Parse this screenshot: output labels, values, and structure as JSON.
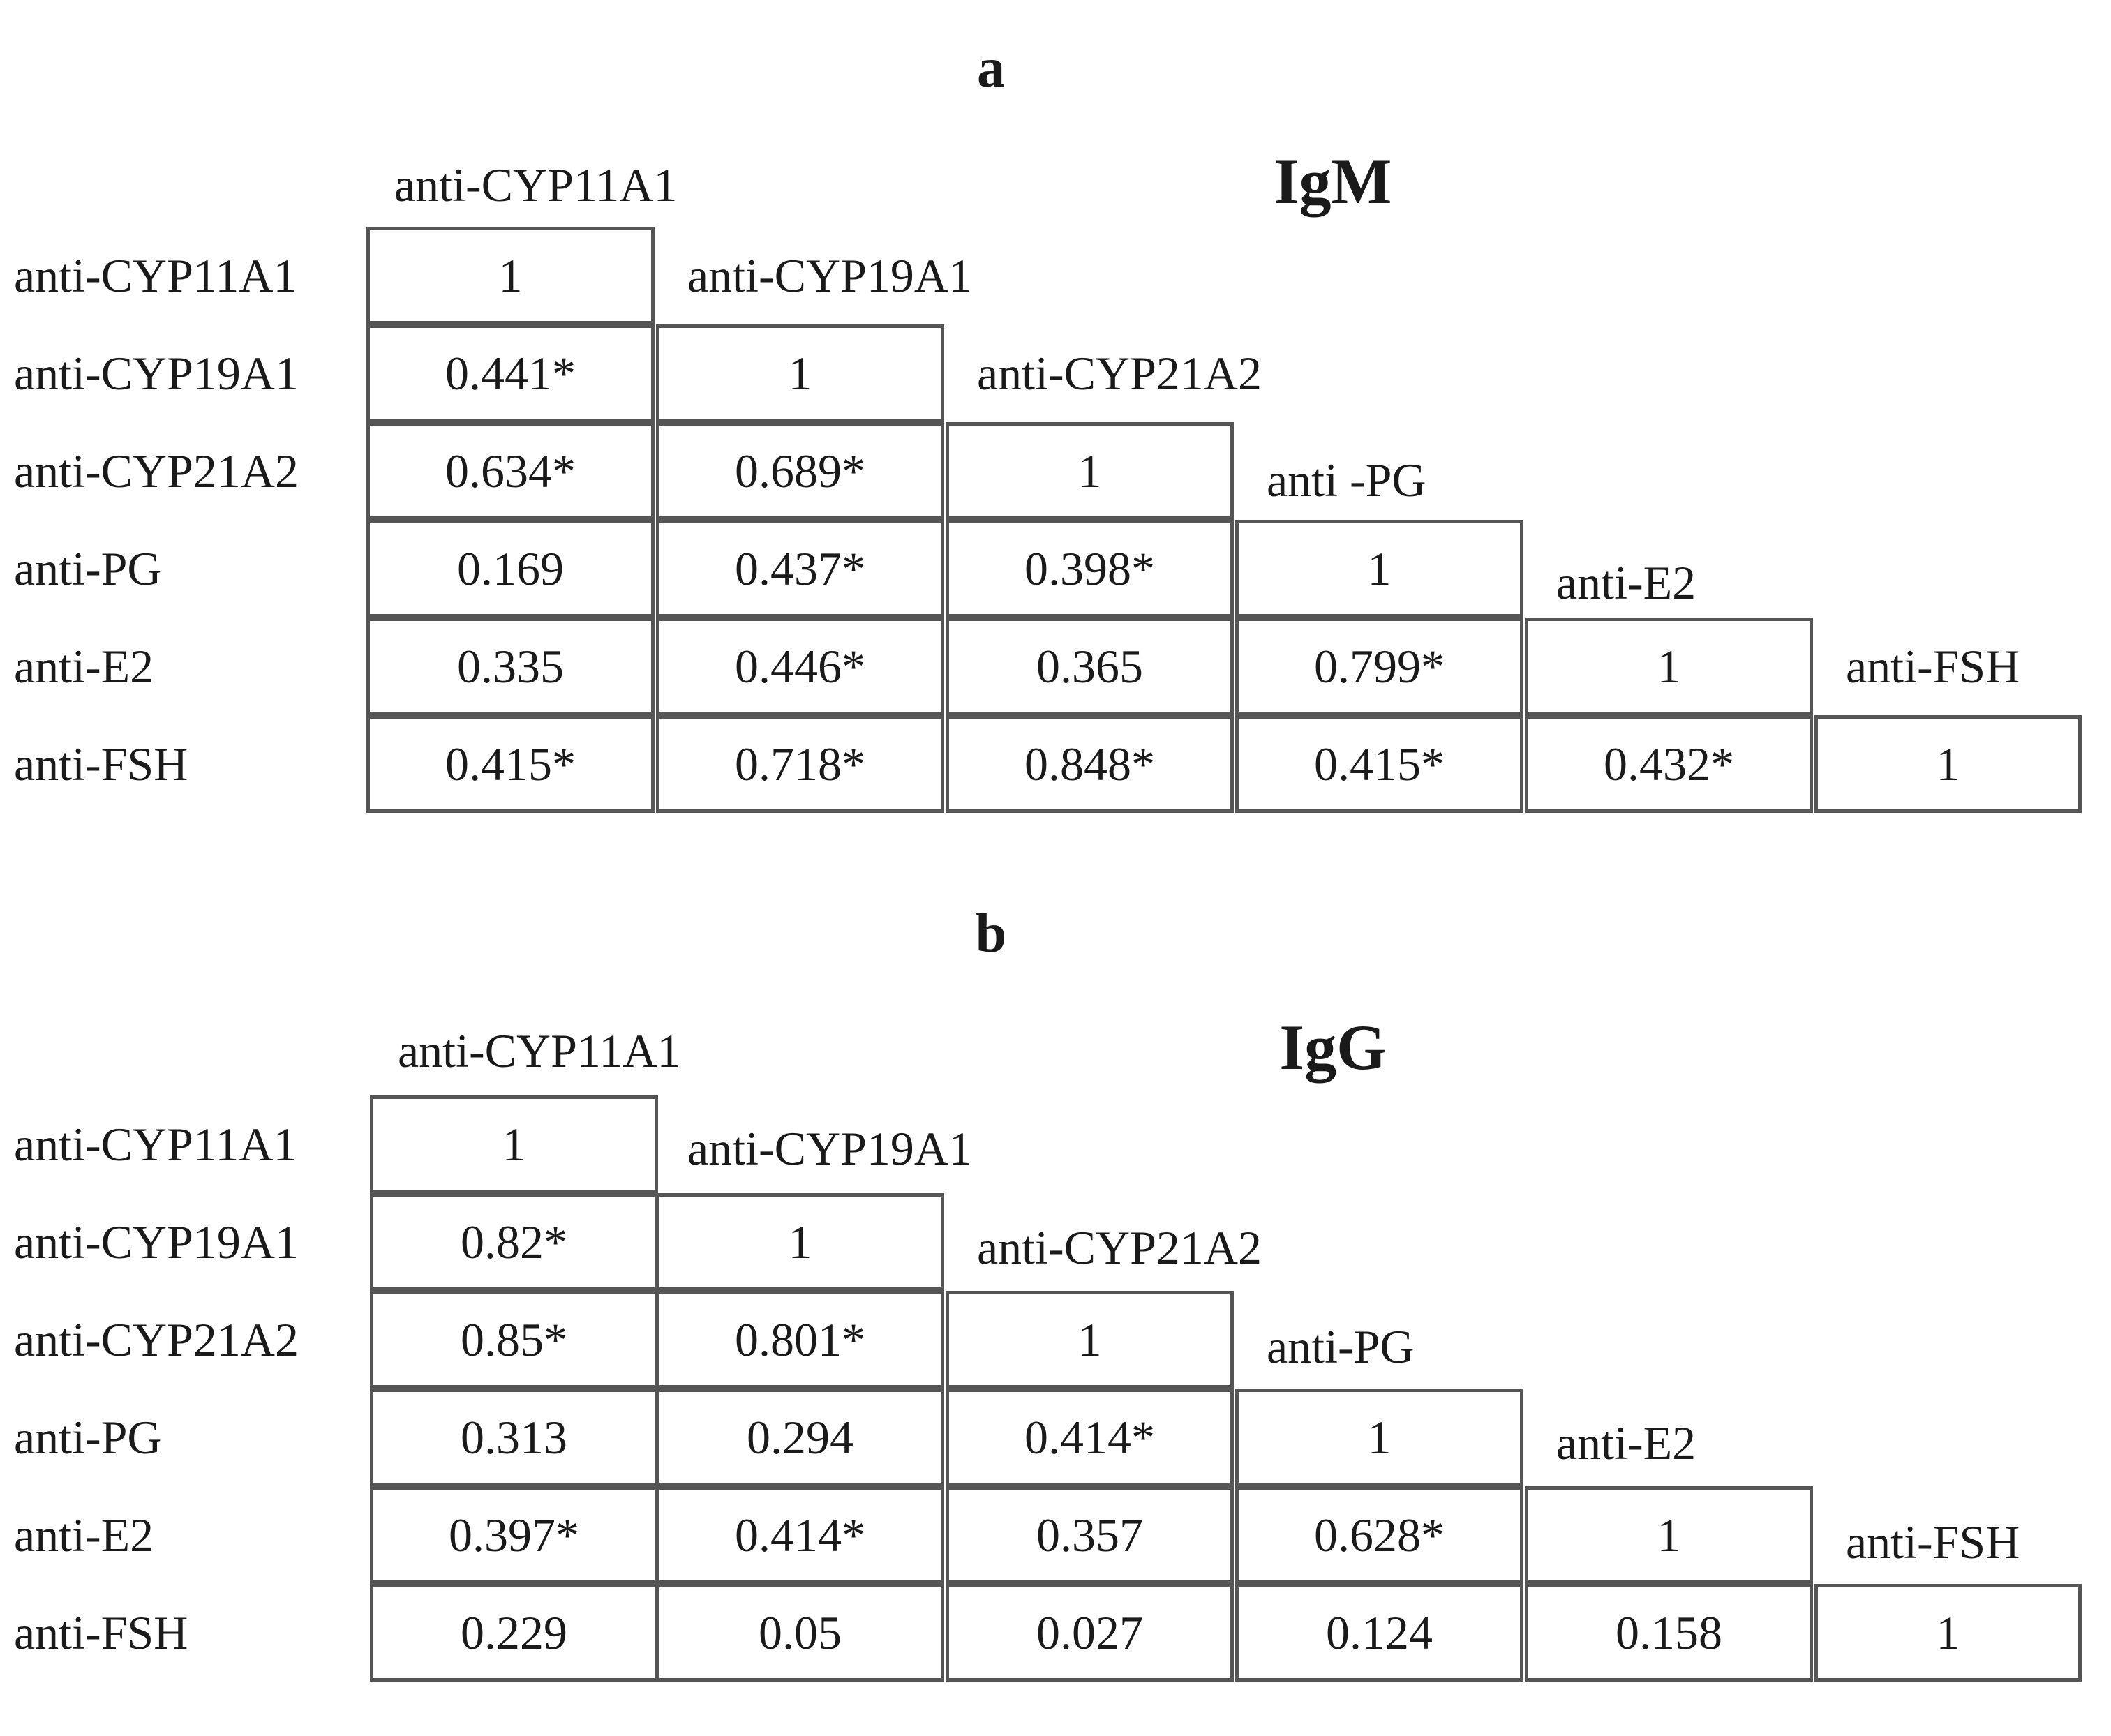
{
  "panels": [
    {
      "letter": "a",
      "title": "IgM",
      "col_labels": [
        "anti-CYP11A1",
        "anti-CYP19A1",
        "anti-CYP21A2",
        "anti -PG",
        "anti-E2",
        "anti-FSH"
      ],
      "row_labels": [
        "anti-CYP11A1",
        "anti-CYP19A1",
        "anti-CYP21A2",
        "anti-PG",
        "anti-E2",
        "anti-FSH"
      ],
      "rows": [
        [
          "1"
        ],
        [
          "0.441*",
          "1"
        ],
        [
          "0.634*",
          "0.689*",
          "1"
        ],
        [
          "0.169",
          "0.437*",
          "0.398*",
          "1"
        ],
        [
          "0.335",
          "0.446*",
          "0.365",
          "0.799*",
          "1"
        ],
        [
          "0.415*",
          "0.718*",
          "0.848*",
          "0.415*",
          "0.432*",
          "1"
        ]
      ]
    },
    {
      "letter": "b",
      "title": "IgG",
      "col_labels": [
        "anti-CYP11A1",
        "anti-CYP19A1",
        "anti-CYP21A2",
        "anti-PG",
        "anti-E2",
        "anti-FSH"
      ],
      "row_labels": [
        "anti-CYP11A1",
        "anti-CYP19A1",
        "anti-CYP21A2",
        "anti-PG",
        "anti-E2",
        "anti-FSH"
      ],
      "rows": [
        [
          "1"
        ],
        [
          "0.82*",
          "1"
        ],
        [
          "0.85*",
          "0.801*",
          "1"
        ],
        [
          "0.313",
          "0.294",
          "0.414*",
          "1"
        ],
        [
          "0.397*",
          "0.414*",
          "0.357",
          "0.628*",
          "1"
        ],
        [
          "0.229",
          "0.05",
          "0.027",
          "0.124",
          "0.158",
          "1"
        ]
      ]
    }
  ]
}
